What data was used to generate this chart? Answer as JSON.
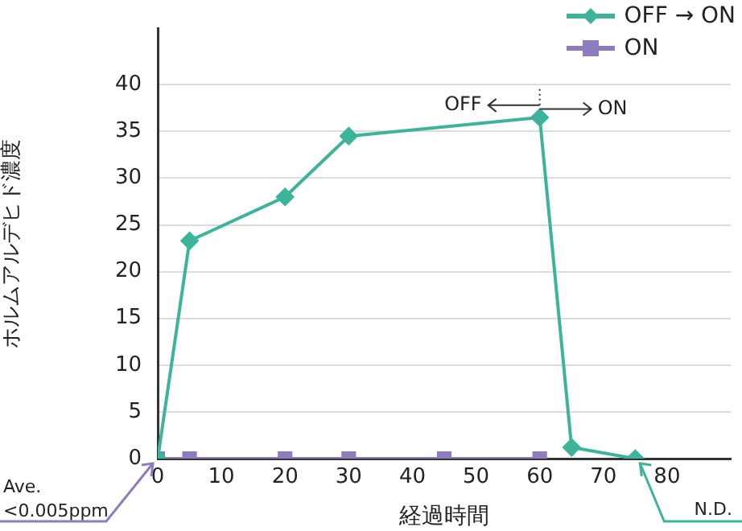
{
  "chart_data": {
    "type": "line",
    "xlabel": "経過時間",
    "ylabel": "ホルムアルデヒド濃度",
    "xlim": [
      0,
      90
    ],
    "xticks": [
      0,
      10,
      20,
      30,
      40,
      50,
      60,
      70,
      80
    ],
    "ylim": [
      0,
      46
    ],
    "yticks": [
      0,
      5,
      10,
      15,
      20,
      25,
      30,
      35,
      40
    ],
    "grid": "y",
    "legend": "top right",
    "line_style": "solid",
    "series": [
      {
        "name": "OFF → ON",
        "color": "#3cb49a",
        "marker": "diamond",
        "x": [
          0,
          5,
          20,
          30,
          60,
          65,
          75
        ],
        "values": [
          0,
          23.3,
          28,
          34.5,
          36.5,
          1.2,
          0
        ]
      },
      {
        "name": "ON",
        "color": "#8f7cc0",
        "marker": "square",
        "x": [
          0,
          5,
          20,
          30,
          45,
          60
        ],
        "values": [
          0,
          0,
          0,
          0,
          0,
          0
        ]
      }
    ],
    "annotations": [
      {
        "text": "OFF",
        "x": 60,
        "y": 37.8
      },
      {
        "text": "ON",
        "x": 60,
        "y": 37.4
      },
      {
        "text": "Ave.\n<0.005ppm",
        "x": 0,
        "y": 0
      },
      {
        "text": "N.D.",
        "x": 75,
        "y": 0
      }
    ]
  }
}
